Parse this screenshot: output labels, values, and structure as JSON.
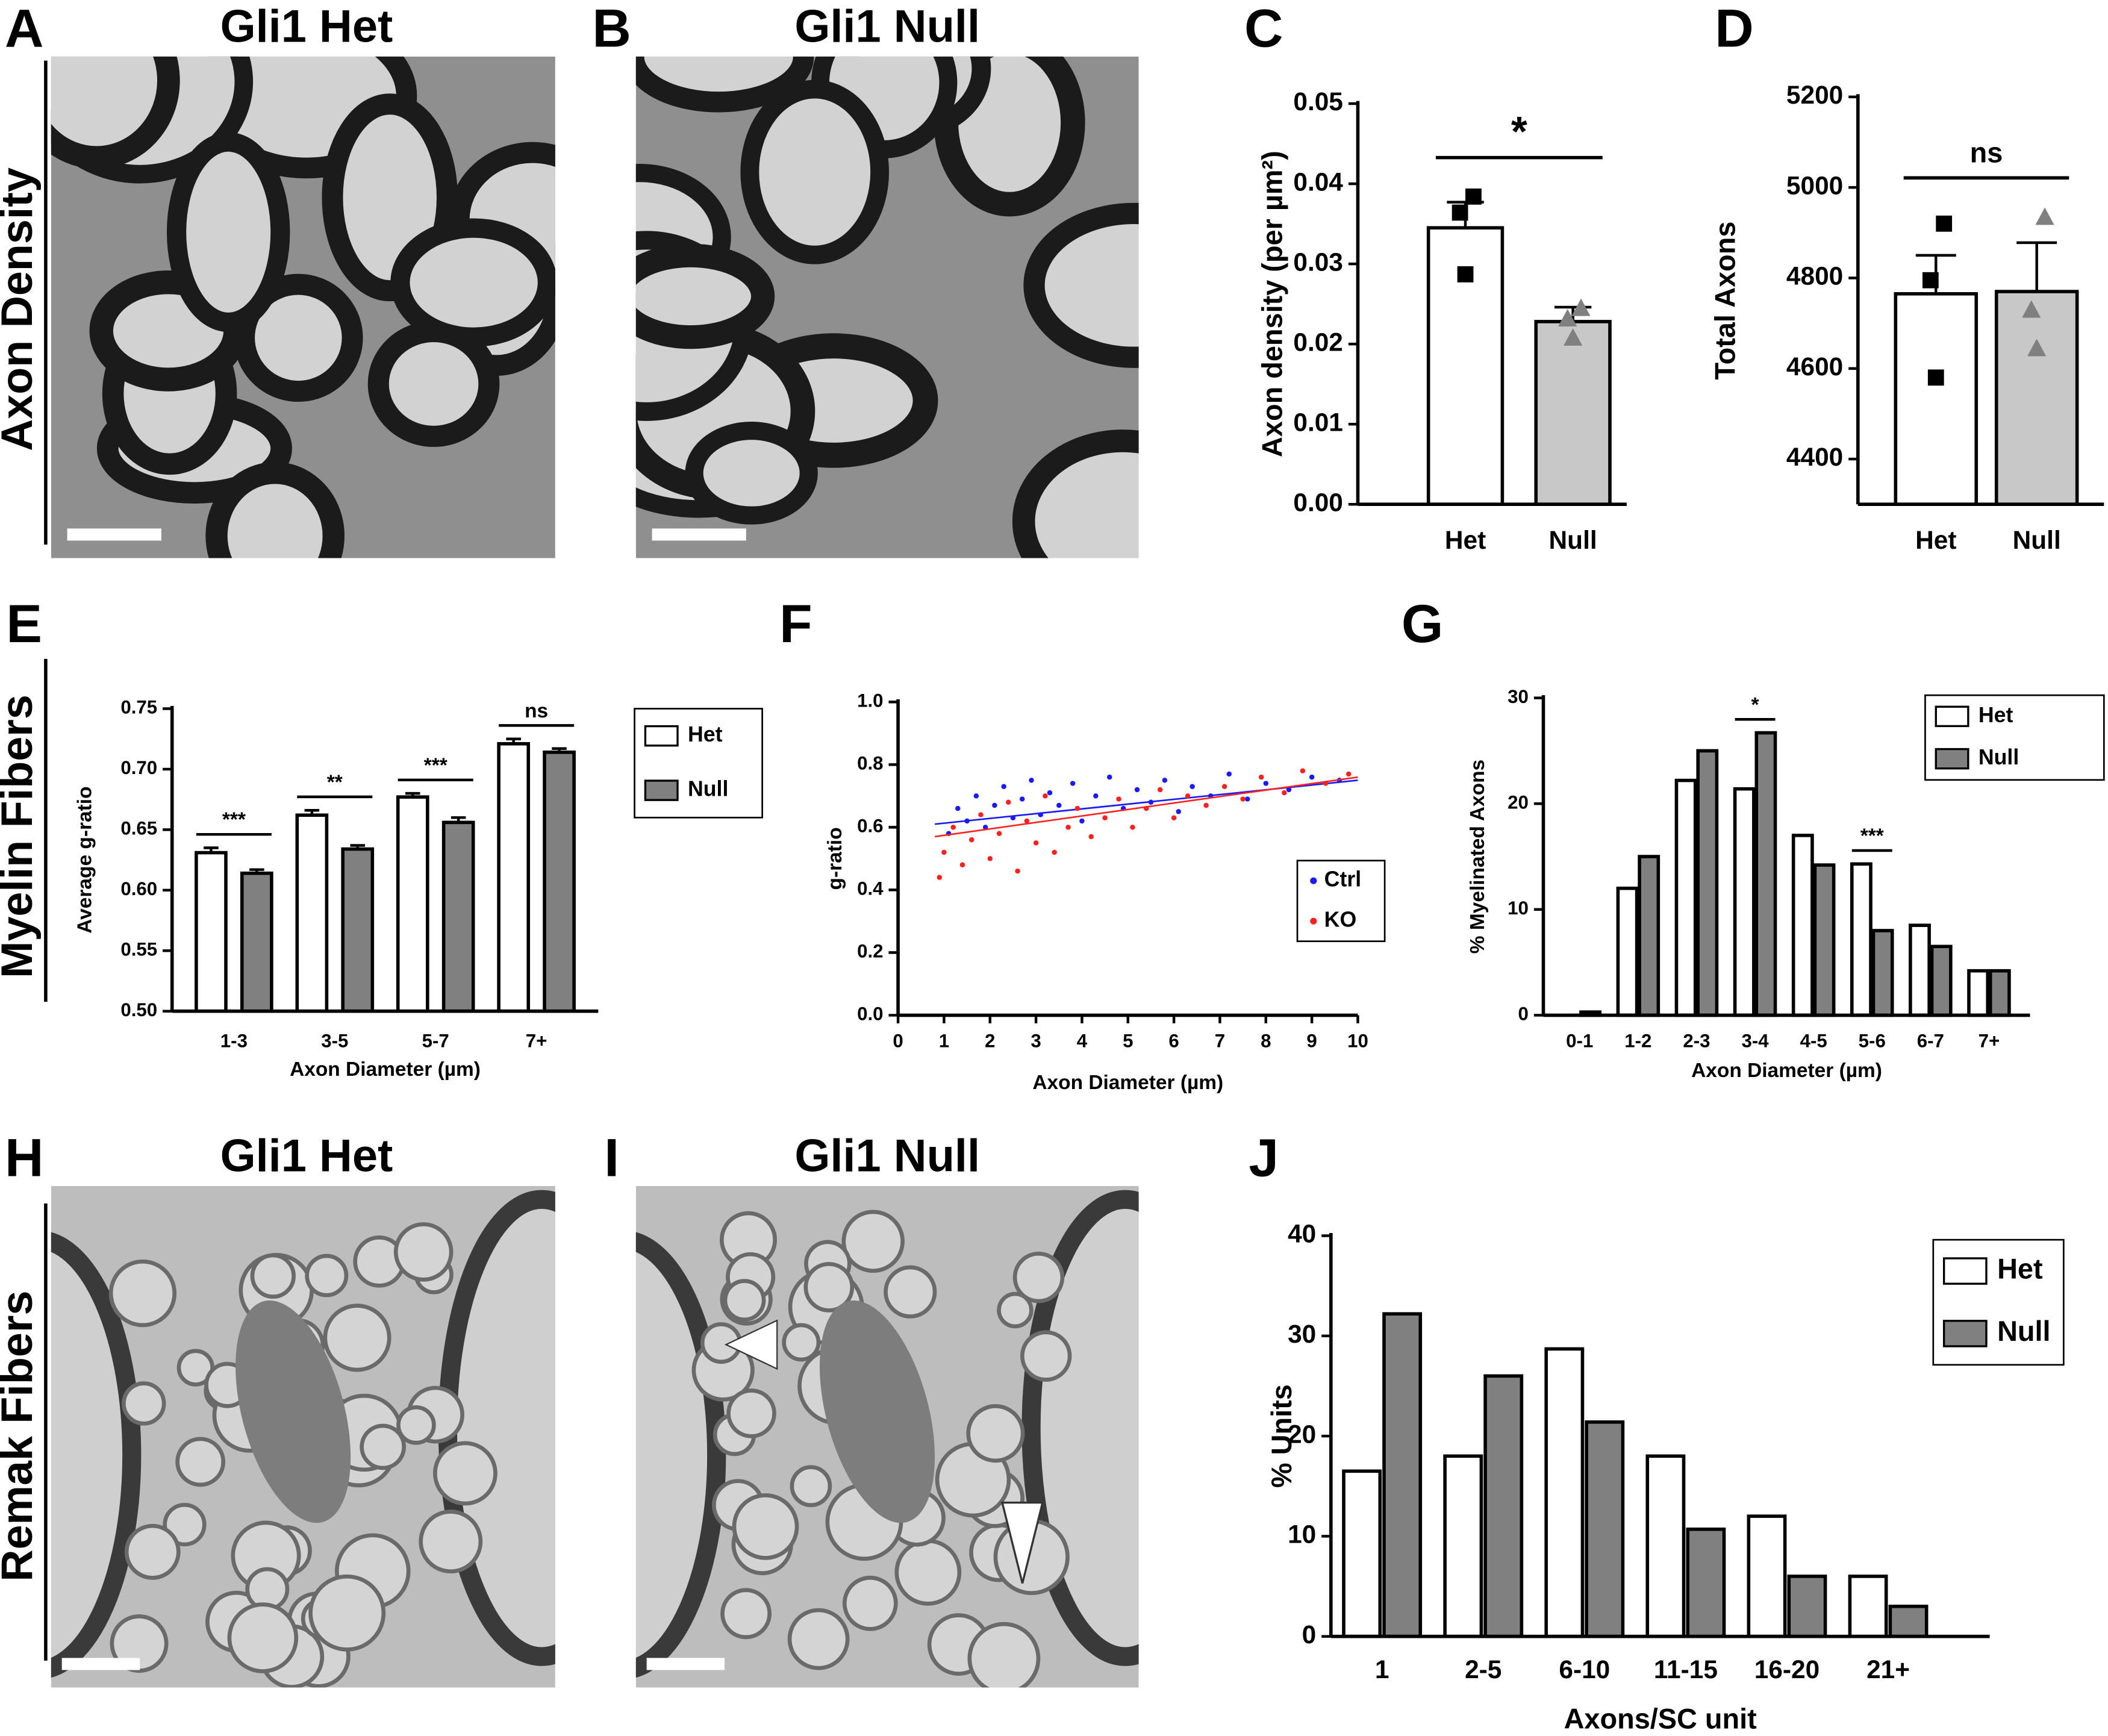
{
  "figure": {
    "panel_letters": [
      "A",
      "B",
      "C",
      "D",
      "E",
      "F",
      "G",
      "H",
      "I",
      "J"
    ],
    "micrograph_titles": [
      "Gli1 Het",
      "Gli1 Null",
      "Gli1 Het",
      "Gli1 Null"
    ],
    "row_labels": [
      "Axon Density",
      "Myelin Fibers",
      "Remak Fibers"
    ]
  },
  "chart_data": [
    {
      "type": "bar",
      "categories": [
        "Het",
        "Null"
      ],
      "values": [
        0.0345,
        0.0228
      ],
      "errors": [
        0.0032,
        0.0018
      ],
      "points": [
        [
          0.0384,
          0.0364,
          0.0287
        ],
        [
          0.0245,
          0.0232,
          0.0208
        ]
      ],
      "markers": [
        "square",
        "triangle"
      ],
      "colors": [
        "#ffffff",
        "#c8c8c8"
      ],
      "point_colors": [
        "#000000",
        "#808080"
      ],
      "ylabel": "Axon density (per µm²)",
      "ylim": [
        0,
        0.05
      ],
      "yticks": [
        {
          "value": 0,
          "label": "0.00"
        },
        0.01,
        0.02,
        0.03,
        0.04,
        0.05
      ],
      "significance": "*"
    },
    {
      "type": "bar",
      "categories": [
        "Het",
        "Null"
      ],
      "values": [
        4765,
        4770
      ],
      "errors": [
        85,
        108
      ],
      "points": [
        [
          4920,
          4795,
          4580
        ],
        [
          4935,
          4730,
          4645
        ]
      ],
      "markers": [
        "square",
        "triangle"
      ],
      "colors": [
        "#ffffff",
        "#c8c8c8"
      ],
      "point_colors": [
        "#000000",
        "#808080"
      ],
      "ylabel": "Total Axons",
      "ylim": [
        4300,
        5200
      ],
      "yticks": [
        4400,
        4600,
        4800,
        5000,
        5200
      ],
      "significance": "ns"
    },
    {
      "type": "bar",
      "categories": [
        "1-3",
        "3-5",
        "5-7",
        "7+"
      ],
      "series": [
        {
          "name": "Het",
          "color": "#ffffff",
          "values": [
            0.631,
            0.662,
            0.677,
            0.721
          ],
          "errors": [
            0.004,
            0.004,
            0.003,
            0.004
          ]
        },
        {
          "name": "Null",
          "color": "#808080",
          "values": [
            0.614,
            0.634,
            0.656,
            0.714
          ],
          "errors": [
            0.003,
            0.003,
            0.004,
            0.003
          ]
        }
      ],
      "xlabel": "Axon Diameter (µm)",
      "ylabel": "Average g-ratio",
      "ylim": [
        0.5,
        0.75
      ],
      "yticks": [
        {
          "value": 0.5,
          "label": "0.50"
        },
        0.55,
        {
          "value": 0.6,
          "label": "0.60"
        },
        0.65,
        {
          "value": 0.7,
          "label": "0.70"
        },
        0.75
      ],
      "significance": [
        "***",
        "**",
        "***",
        "ns"
      ],
      "legend": "upper right"
    },
    {
      "type": "scatter",
      "xlabel": "Axon Diameter (µm)",
      "ylabel": "g-ratio",
      "xlim": [
        0,
        10
      ],
      "xticks": [
        0,
        1,
        2,
        3,
        4,
        5,
        6,
        7,
        8,
        9,
        10
      ],
      "ylim": [
        0,
        1
      ],
      "yticks": [
        {
          "value": 0,
          "label": "0.0"
        },
        0.2,
        0.4,
        0.6,
        0.8,
        {
          "value": 1,
          "label": "1.0"
        }
      ],
      "legend": "lower right",
      "series": [
        {
          "name": "Ctrl",
          "color": "#1a1aff",
          "x": [
            1.1,
            1.3,
            1.5,
            1.7,
            1.9,
            2.1,
            2.3,
            2.5,
            2.7,
            2.9,
            3.1,
            3.3,
            3.5,
            3.8,
            4.0,
            4.3,
            4.6,
            4.9,
            5.2,
            5.5,
            5.8,
            6.1,
            6.4,
            6.8,
            7.2,
            7.6,
            8.0,
            8.5,
            9.0,
            9.6
          ],
          "values": [
            0.58,
            0.66,
            0.62,
            0.7,
            0.6,
            0.67,
            0.73,
            0.63,
            0.69,
            0.75,
            0.64,
            0.71,
            0.67,
            0.74,
            0.62,
            0.7,
            0.76,
            0.66,
            0.72,
            0.68,
            0.75,
            0.65,
            0.73,
            0.7,
            0.77,
            0.69,
            0.74,
            0.72,
            0.76,
            0.75
          ],
          "fit_x": [
            0.8,
            10
          ],
          "fit_values": [
            0.61,
            0.75
          ]
        },
        {
          "name": "KO",
          "color": "#ff2020",
          "x": [
            0.9,
            1.0,
            1.2,
            1.4,
            1.6,
            1.8,
            2.0,
            2.2,
            2.4,
            2.6,
            2.8,
            3.0,
            3.2,
            3.4,
            3.7,
            3.9,
            4.2,
            4.5,
            4.8,
            5.1,
            5.4,
            5.7,
            6.0,
            6.3,
            6.7,
            7.1,
            7.5,
            7.9,
            8.4,
            8.8,
            9.3,
            9.8
          ],
          "values": [
            0.44,
            0.52,
            0.6,
            0.48,
            0.56,
            0.64,
            0.5,
            0.58,
            0.68,
            0.46,
            0.62,
            0.55,
            0.7,
            0.52,
            0.6,
            0.66,
            0.57,
            0.63,
            0.69,
            0.6,
            0.66,
            0.72,
            0.63,
            0.7,
            0.67,
            0.73,
            0.69,
            0.76,
            0.71,
            0.78,
            0.74,
            0.77
          ],
          "fit_x": [
            0.8,
            10
          ],
          "fit_values": [
            0.57,
            0.76
          ]
        }
      ]
    },
    {
      "type": "bar",
      "categories": [
        "0-1",
        "1-2",
        "2-3",
        "3-4",
        "4-5",
        "5-6",
        "6-7",
        "7+"
      ],
      "series": [
        {
          "name": "Het",
          "color": "#ffffff",
          "values": [
            0,
            12,
            22.2,
            21.4,
            17,
            14.3,
            8.5,
            4.2
          ]
        },
        {
          "name": "Null",
          "color": "#808080",
          "values": [
            0.3,
            15,
            25,
            26.7,
            14.2,
            8,
            6.5,
            4.2
          ]
        }
      ],
      "xlabel": "Axon Diameter (µm)",
      "ylabel": "% Myelinated Axons",
      "ylim": [
        0,
        30
      ],
      "yticks": [
        0,
        10,
        20,
        30
      ],
      "significance": [
        null,
        null,
        null,
        "*",
        null,
        "***",
        null,
        null
      ],
      "legend": "upper right"
    },
    {
      "type": "bar",
      "categories": [
        "1",
        "2-5",
        "6-10",
        "11-15",
        "16-20",
        "21+"
      ],
      "series": [
        {
          "name": "Het",
          "color": "#ffffff",
          "values": [
            16.5,
            18,
            28.7,
            18,
            12,
            6
          ]
        },
        {
          "name": "Null",
          "color": "#808080",
          "values": [
            32.2,
            26,
            21.4,
            10.7,
            6,
            3
          ]
        }
      ],
      "xlabel": "Axons/SC unit",
      "ylabel": "% Units",
      "ylim": [
        0,
        40
      ],
      "yticks": [
        0,
        10,
        20,
        30,
        40
      ],
      "legend": "upper right"
    }
  ]
}
